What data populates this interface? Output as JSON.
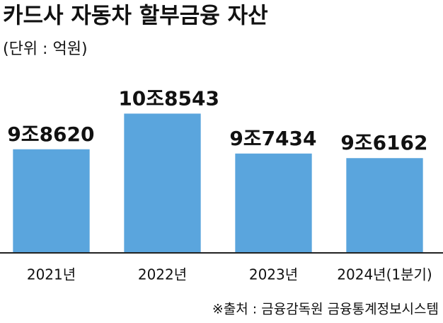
{
  "chart_data": {
    "type": "bar",
    "title": "카드사 자동차 할부금융 자산",
    "subtitle": "(단위 : 억원)",
    "source": "※출처 : 금융감독원 금융통계정보시스템",
    "categories": [
      "2021년",
      "2022년",
      "2023년",
      "2024년(1분기)"
    ],
    "values": [
      98620,
      108543,
      97434,
      96162
    ],
    "value_labels": [
      "9조8620",
      "10조8543",
      "9조7434",
      "9조6162"
    ],
    "color": "#5aa5dd",
    "ylim": [
      70000,
      110000
    ]
  }
}
